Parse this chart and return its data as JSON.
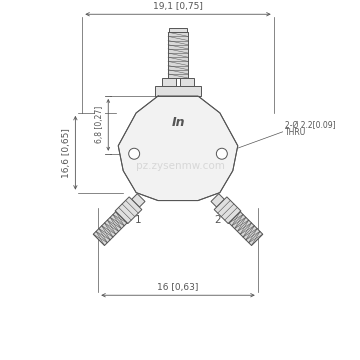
{
  "bg_color": "#ffffff",
  "line_color": "#555555",
  "dim_color": "#555555",
  "watermark_color": "#cccccc",
  "watermark_text": "pz.zysenmw.com",
  "dim_top_label": "19,1 [0,75]",
  "dim_bottom_label": "16 [0,63]",
  "dim_left_label": "16,6 [0,65]",
  "dim_inner_label": "6,8 [0,27]",
  "dim_right_label": "2-Ø 2.2[0.09]",
  "dim_right_label2": "THRU",
  "label_in": "In",
  "label_1": "1",
  "label_2": "2",
  "body_fill": "#f2f2f2",
  "connector_fill": "#e0e0e0",
  "thread_fill": "#d8d8d8",
  "figsize": [
    3.6,
    3.6
  ],
  "dpi": 100
}
